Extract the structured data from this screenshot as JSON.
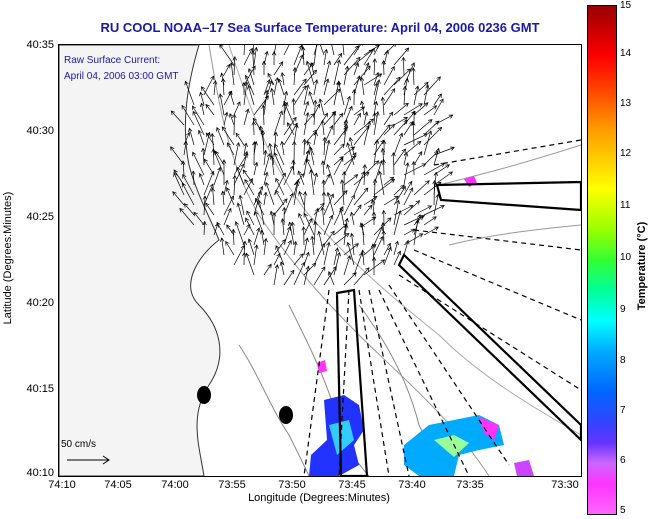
{
  "title": "RU COOL  NOAA–17  Sea Surface Temperature:  April 04, 2006 0236 GMT",
  "annotation": {
    "line1": "Raw Surface Current:",
    "line2": "April 04, 2006 03:00 GMT"
  },
  "axes": {
    "xlabel": "Longitude (Degrees:Minutes)",
    "ylabel": "Latitude (Degrees:Minutes)",
    "xticks": [
      "74:10",
      "74:05",
      "74:00",
      "73:55",
      "73:50",
      "73:45",
      "73:40",
      "73:35",
      "73:30"
    ],
    "yticks": [
      "40:35",
      "40:30",
      "40:25",
      "40:20",
      "40:15",
      "40:10"
    ]
  },
  "colorbar": {
    "label": "Temperature (°C)",
    "ticks": [
      "15",
      "14",
      "13",
      "12",
      "11",
      "10",
      "9",
      "8",
      "7",
      "6",
      "5"
    ]
  },
  "scale_label": "50 cm/s",
  "colors": {
    "title": "#1a1aa8",
    "land": "#f2f2f2"
  }
}
